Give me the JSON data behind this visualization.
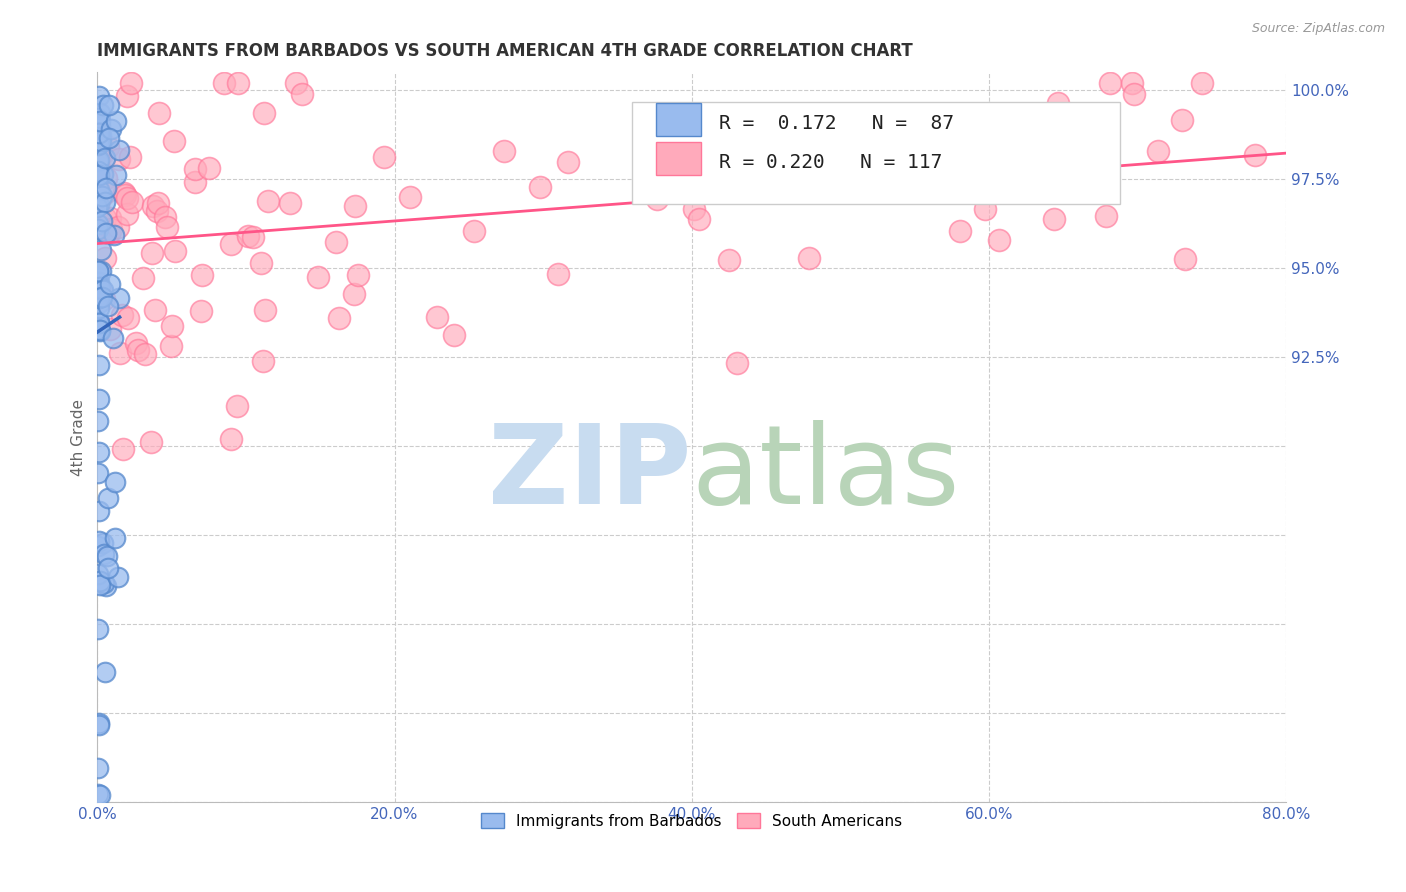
{
  "title": "IMMIGRANTS FROM BARBADOS VS SOUTH AMERICAN 4TH GRADE CORRELATION CHART",
  "source_text": "Source: ZipAtlas.com",
  "ylabel": "4th Grade",
  "xlim": [
    0.0,
    80.0
  ],
  "ylim": [
    80.0,
    100.5
  ],
  "xtick_labels": [
    "0.0%",
    "20.0%",
    "40.0%",
    "60.0%",
    "80.0%"
  ],
  "xtick_vals": [
    0,
    20,
    40,
    60,
    80
  ],
  "ytick_labels": [
    "100.0%",
    "97.5%",
    "95.0%",
    "92.5%"
  ],
  "ytick_vals": [
    100.0,
    97.5,
    95.0,
    92.5
  ],
  "blue_R": 0.172,
  "blue_N": 87,
  "pink_R": 0.22,
  "pink_N": 117,
  "blue_color": "#99BBEE",
  "pink_color": "#FFAABB",
  "blue_edge": "#5588CC",
  "pink_edge": "#FF7799",
  "watermark_zip_color": "#C8DCF0",
  "watermark_atlas_color": "#B8D4B8",
  "legend_label_blue": "Immigrants from Barbados",
  "legend_label_pink": "South Americans",
  "blue_line_color": "#3366BB",
  "pink_line_color": "#FF5588",
  "grid_color": "#CCCCCC"
}
